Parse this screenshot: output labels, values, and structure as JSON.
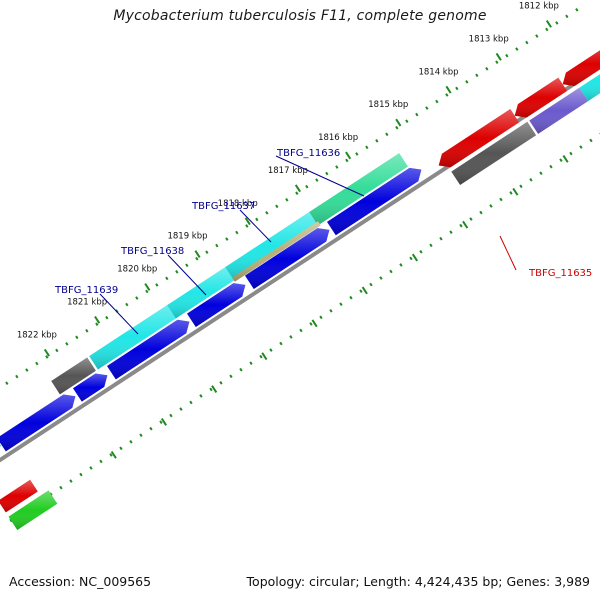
{
  "title": "Mycobacterium tuberculosis F11, complete genome",
  "footer": {
    "accession_label": "Accession:",
    "accession": "NC_009565",
    "topology_label": "Topology:",
    "topology": "circular",
    "length_label": "Length:",
    "length": "4,424,435 bp",
    "genes_label": "Genes:",
    "genes": "3,989"
  },
  "scale": {
    "unit": "kbp",
    "ticks": [
      1812,
      1813,
      1814,
      1815,
      1816,
      1817,
      1818,
      1819,
      1820,
      1821,
      1822
    ]
  },
  "gene_labels": [
    {
      "name": "TBFG_11636",
      "color": "#00008b"
    },
    {
      "name": "TBFG_11637",
      "color": "#00008b"
    },
    {
      "name": "TBFG_11638",
      "color": "#00008b"
    },
    {
      "name": "TBFG_11639",
      "color": "#00008b"
    },
    {
      "name": "TBFG_11635",
      "color": "#cc0000"
    }
  ],
  "colors": {
    "backbone": "#8a8a8a",
    "tick_mark": "#1f8a1f",
    "forward_cds": "#0000dd",
    "reverse_cds": "#dd0000",
    "cyan": "#22e6e6",
    "mint": "#33dd99",
    "gray": "#555555",
    "tan": "#b8b07a",
    "purple": "#6a5acd",
    "green": "#22cc22",
    "lightblue": "#33aaff"
  }
}
